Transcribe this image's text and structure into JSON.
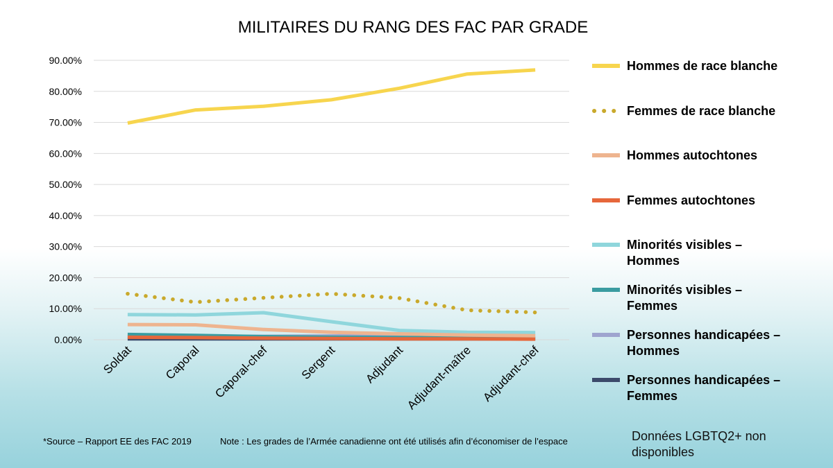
{
  "chart_data": {
    "type": "line",
    "title": "MILITAIRES DU RANG DES FAC PAR GRADE",
    "xlabel": "",
    "ylabel": "",
    "ylim": [
      0,
      90
    ],
    "y_tick_labels": [
      "0.00%",
      "10.00%",
      "20.00%",
      "30.00%",
      "40.00%",
      "50.00%",
      "60.00%",
      "70.00%",
      "80.00%",
      "90.00%"
    ],
    "categories": [
      "Soldat",
      "Caporal",
      "Caporal-chef",
      "Sergent",
      "Adjudant",
      "Adjudant-maître",
      "Adjudant-chef"
    ],
    "grid": true,
    "legend_position": "right",
    "series": [
      {
        "name": "Hommes de race blanche",
        "legend_lines": [
          "Hommes de race blanche"
        ],
        "color": "#f7d54e",
        "style": "solid",
        "values": [
          69.8,
          74.0,
          75.2,
          77.3,
          81.0,
          85.6,
          86.9
        ]
      },
      {
        "name": "Femmes de race blanche",
        "legend_lines": [
          "Femmes de race blanche"
        ],
        "color": "#c9a92c",
        "style": "dotted",
        "values": [
          14.8,
          12.1,
          13.5,
          14.8,
          13.4,
          9.5,
          8.8
        ]
      },
      {
        "name": "Hommes autochtones",
        "legend_lines": [
          "Hommes autochtones"
        ],
        "color": "#eeb48f",
        "style": "solid",
        "values": [
          4.9,
          4.8,
          3.3,
          2.4,
          1.9,
          1.5,
          1.3
        ]
      },
      {
        "name": "Femmes autochtones",
        "legend_lines": [
          "Femmes autochtones"
        ],
        "color": "#e6673b",
        "style": "solid",
        "values": [
          0.8,
          0.7,
          0.5,
          0.4,
          0.3,
          0.3,
          0.2
        ]
      },
      {
        "name": "Minorités visibles – Hommes",
        "legend_lines": [
          "Minorités visibles –",
          "Hommes"
        ],
        "color": "#8fd6dc",
        "style": "solid",
        "values": [
          8.1,
          8.0,
          8.7,
          5.8,
          3.0,
          2.4,
          2.3
        ]
      },
      {
        "name": "Minorités visibles – Femmes",
        "legend_lines": [
          "Minorités visibles –",
          "Femmes"
        ],
        "color": "#3a9ca1",
        "style": "solid",
        "values": [
          1.7,
          1.4,
          1.0,
          0.8,
          0.7,
          0.6,
          0.5
        ]
      },
      {
        "name": "Personnes handicapées – Hommes",
        "legend_lines": [
          "Personnes handicapées –",
          "Hommes"
        ],
        "color": "#9fa4cf",
        "style": "solid",
        "values": [
          0.9,
          1.0,
          1.1,
          1.2,
          1.3,
          1.3,
          1.3
        ]
      },
      {
        "name": "Personnes handicapées – Femmes",
        "legend_lines": [
          "Personnes handicapées –",
          "Femmes"
        ],
        "color": "#3c4a6b",
        "style": "solid",
        "values": [
          0.3,
          0.3,
          0.3,
          0.3,
          0.3,
          0.3,
          0.3
        ]
      }
    ]
  },
  "footer": {
    "source": "*Source – Rapport EE des FAC 2019",
    "note": "Note : Les grades de l’Armée canadienne ont été utilisés afin d’économiser de l’espace",
    "lgbtq_line1": "Données LGBTQ2+ non",
    "lgbtq_line2": "disponibles"
  }
}
